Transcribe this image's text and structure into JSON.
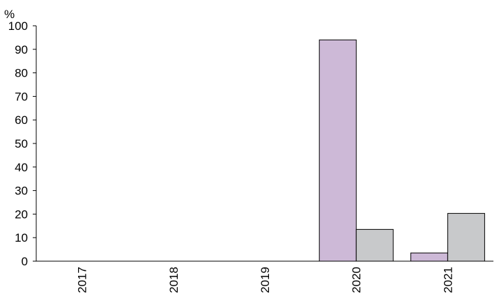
{
  "chart_data": {
    "type": "bar",
    "unit_label": "%",
    "categories": [
      "2017",
      "2018",
      "2019",
      "2020",
      "2021"
    ],
    "series": [
      {
        "color": "#cdb9d7",
        "values": [
          0,
          0,
          0,
          94,
          3.5
        ]
      },
      {
        "color": "#c8c9cb",
        "values": [
          0,
          0,
          0,
          13.5,
          20.3
        ]
      }
    ],
    "ylim": [
      0,
      100
    ],
    "yticks": [
      0,
      10,
      20,
      30,
      40,
      50,
      60,
      70,
      80,
      90,
      100
    ],
    "grid": false,
    "legend": "none"
  }
}
